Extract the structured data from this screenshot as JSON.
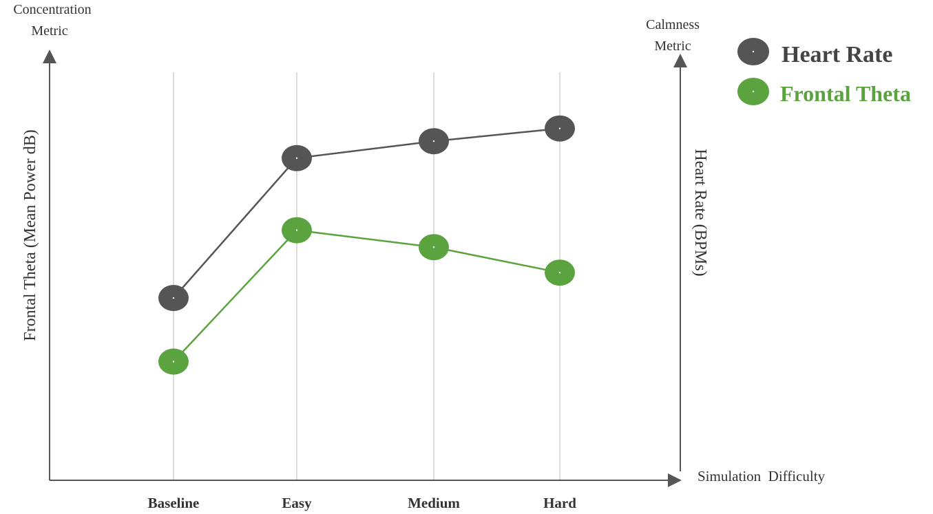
{
  "chart_data": {
    "type": "line",
    "categories": [
      "Baseline",
      "Easy",
      "Medium",
      "Hard"
    ],
    "xlabel": "Simulation  Difficulty",
    "ylabel_left": "Frontal Theta (Mean Power dB)",
    "ylabel_right": "Heart Rate (BPMs)",
    "left_axis_title": [
      "Concentration",
      "Metric"
    ],
    "right_axis_title": [
      "Calmness",
      "Metric"
    ],
    "ylim": [
      0,
      100
    ],
    "grid": "vertical",
    "legend_position": "top-right",
    "series": [
      {
        "name": "Heart Rate",
        "color": "#555555",
        "values": [
          43,
          76,
          80,
          83
        ]
      },
      {
        "name": "Frontal Theta",
        "color": "#5aa33e",
        "values": [
          28,
          59,
          55,
          49
        ]
      }
    ]
  }
}
